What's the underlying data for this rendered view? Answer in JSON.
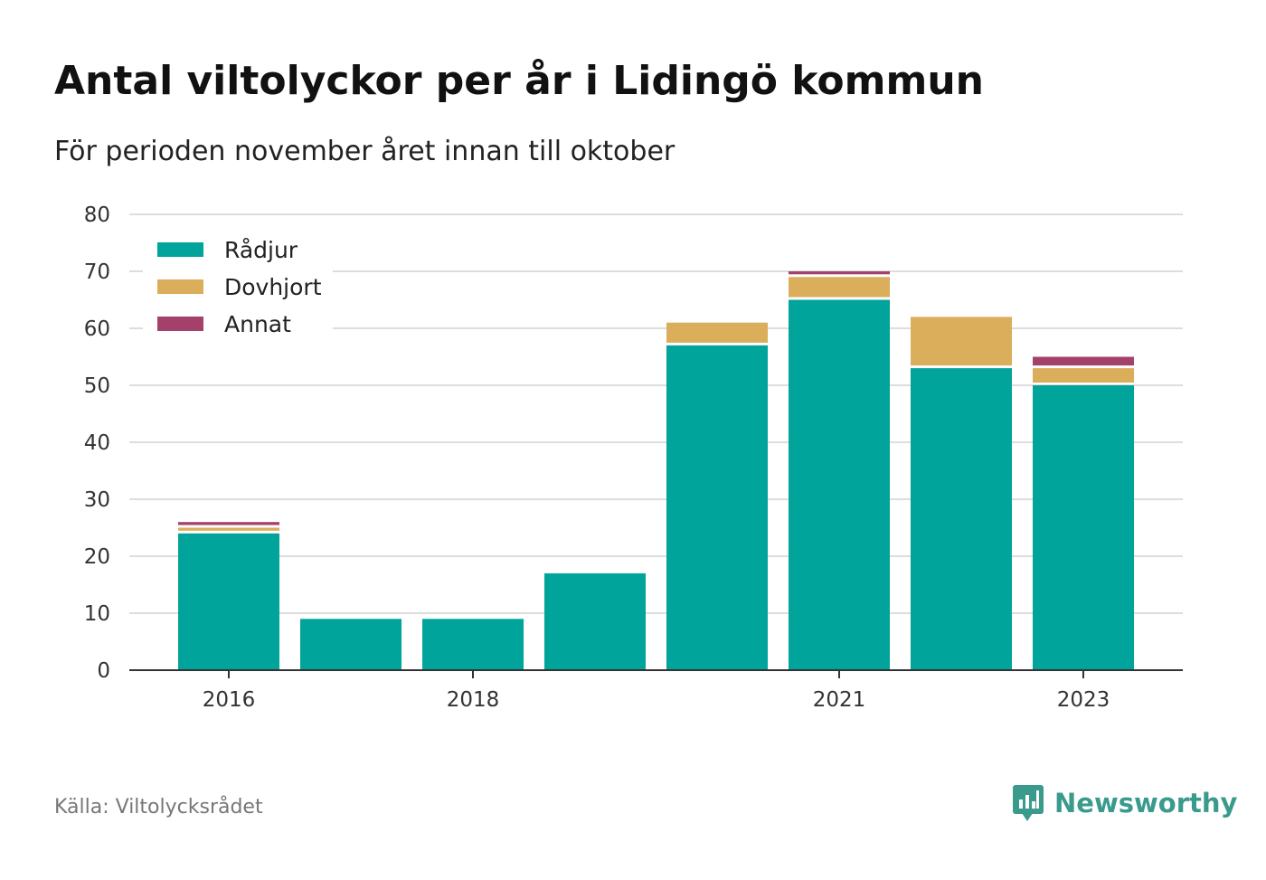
{
  "header": {
    "title": "Antal viltolyckor per år i Lidingö kommun",
    "subtitle": "För perioden november året innan till oktober"
  },
  "footer": {
    "source": "Källa: Viltolycksrådet",
    "brand": "Newsworthy"
  },
  "colors": {
    "radjur": "#00a49a",
    "dovhjort": "#daae5b",
    "annat": "#a3416b",
    "grid": "#dddddd",
    "axis": "#333333",
    "brand": "#3a9a8c"
  },
  "chart_data": {
    "type": "bar",
    "stacked": true,
    "categories": [
      "2016",
      "2017",
      "2018",
      "2019",
      "2020",
      "2021",
      "2022",
      "2023"
    ],
    "x_tick_labels": [
      "2016",
      "2018",
      "2021",
      "2023"
    ],
    "series": [
      {
        "name": "Rådjur",
        "color": "#00a49a",
        "values": [
          24,
          9,
          9,
          17,
          57,
          65,
          53,
          50
        ]
      },
      {
        "name": "Dovhjort",
        "color": "#daae5b",
        "values": [
          1,
          0,
          0,
          0,
          4,
          4,
          9,
          3
        ]
      },
      {
        "name": "Annat",
        "color": "#a3416b",
        "values": [
          1,
          0,
          0,
          0,
          0,
          1,
          0,
          2
        ]
      }
    ],
    "ylim": [
      0,
      80
    ],
    "yticks": [
      0,
      10,
      20,
      30,
      40,
      50,
      60,
      70,
      80
    ],
    "grid": true,
    "legend_position": "top-left"
  }
}
